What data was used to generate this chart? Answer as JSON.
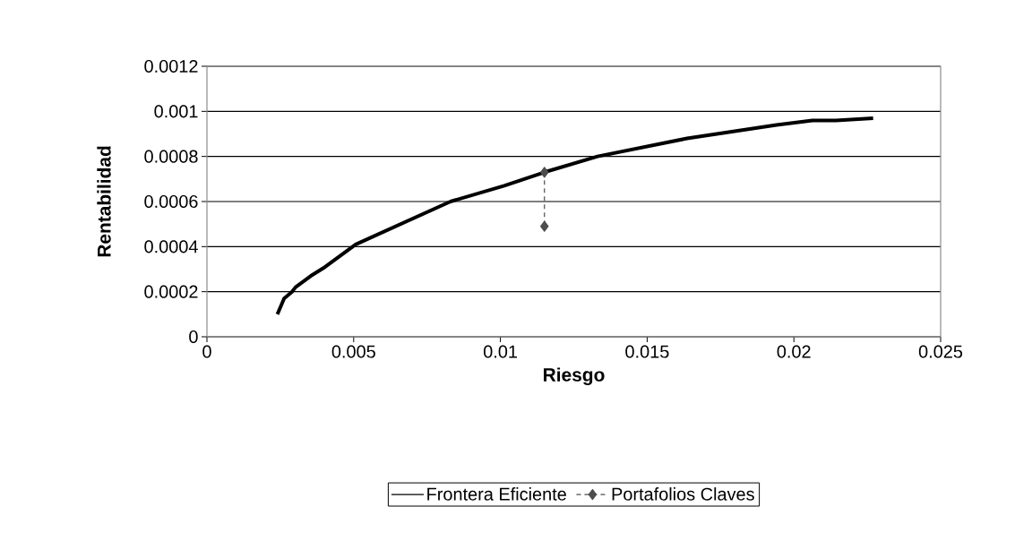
{
  "chart_data": {
    "type": "line",
    "xlabel": "Riesgo",
    "ylabel": "Rentabilidad",
    "xlim": [
      0,
      0.025
    ],
    "xticks": [
      0,
      0.005,
      0.01,
      0.015,
      0.02,
      0.025
    ],
    "ylim": [
      0,
      0.0012
    ],
    "yticks": [
      0,
      0.0002,
      0.0004,
      0.0006,
      0.0008,
      0.001,
      0.0012
    ],
    "grid": "y",
    "legend": "bottom",
    "series": [
      {
        "name": "Frontera Eficiente",
        "color": "#000000",
        "marker": "none",
        "line_style": "solid",
        "x": [
          0.0024,
          0.0025,
          0.00263,
          0.0029,
          0.00302,
          0.00354,
          0.00403,
          0.00507,
          0.0083,
          0.01013,
          0.0115,
          0.01331,
          0.01636,
          0.01941,
          0.02063,
          0.02143,
          0.0227
        ],
        "values": [
          0.0001,
          0.00013,
          0.00017,
          0.0002,
          0.00022,
          0.00027,
          0.00031,
          0.00041,
          0.0006,
          0.00067,
          0.00073,
          0.0008,
          0.00088,
          0.00094,
          0.00096,
          0.00096,
          0.00097
        ]
      },
      {
        "name": "Portafolios Claves",
        "color": "#4d4d4d",
        "marker": "diamond",
        "line_style": "dashed",
        "x": [
          0.0115,
          0.0115
        ],
        "values": [
          0.00073,
          0.00049
        ]
      }
    ]
  }
}
